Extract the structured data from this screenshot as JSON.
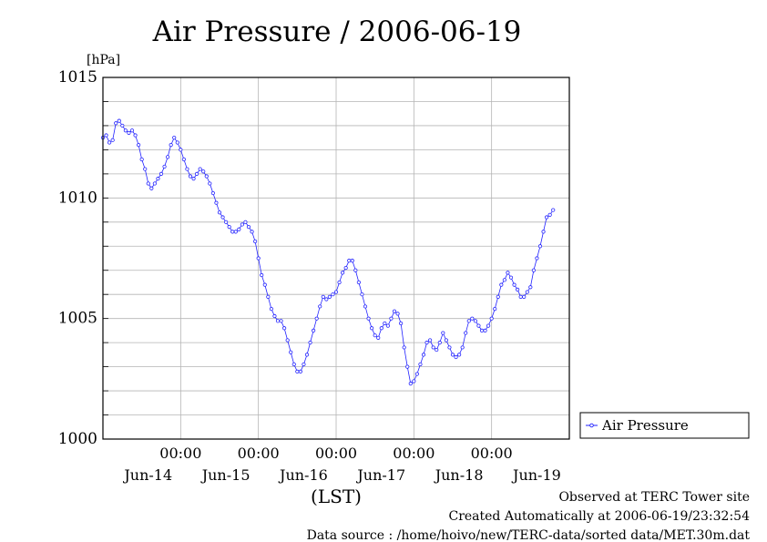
{
  "chart_data": {
    "type": "line",
    "title": "Air Pressure / 2006-06-19",
    "ylabel": "[hPa]",
    "xlabel": "(LST)",
    "ylim": [
      1000,
      1015
    ],
    "yticks": [
      "1000",
      "1005",
      "1010",
      "1015"
    ],
    "xlim_hours": [
      0,
      144
    ],
    "x_units": "hours since 2006-06-13 21:00 LST",
    "xticks": [
      {
        "x": 24,
        "time": "00:00",
        "date": "Jun-14"
      },
      {
        "x": 48,
        "time": "00:00",
        "date": "Jun-15"
      },
      {
        "x": 72,
        "time": "00:00",
        "date": "Jun-16"
      },
      {
        "x": 96,
        "time": "00:00",
        "date": "Jun-17"
      },
      {
        "x": 120,
        "time": "00:00",
        "date": "Jun-18"
      }
    ],
    "xdate_extra": {
      "x": 134,
      "date": "Jun-19"
    },
    "grid": true,
    "legend_position": "right",
    "series": [
      {
        "name": "Air Pressure",
        "color": "#2222ff",
        "points": [
          [
            0,
            1012.5
          ],
          [
            1,
            1012.6
          ],
          [
            2,
            1012.3
          ],
          [
            3,
            1012.4
          ],
          [
            4,
            1013.1
          ],
          [
            5,
            1013.2
          ],
          [
            6,
            1013.0
          ],
          [
            7,
            1012.8
          ],
          [
            8,
            1012.7
          ],
          [
            9,
            1012.8
          ],
          [
            10,
            1012.6
          ],
          [
            11,
            1012.2
          ],
          [
            12,
            1011.6
          ],
          [
            13,
            1011.2
          ],
          [
            14,
            1010.6
          ],
          [
            15,
            1010.4
          ],
          [
            16,
            1010.6
          ],
          [
            17,
            1010.8
          ],
          [
            18,
            1011.0
          ],
          [
            19,
            1011.3
          ],
          [
            20,
            1011.7
          ],
          [
            21,
            1012.2
          ],
          [
            22,
            1012.5
          ],
          [
            23,
            1012.3
          ],
          [
            24,
            1012.0
          ],
          [
            25,
            1011.6
          ],
          [
            26,
            1011.2
          ],
          [
            27,
            1010.9
          ],
          [
            28,
            1010.8
          ],
          [
            29,
            1011.0
          ],
          [
            30,
            1011.2
          ],
          [
            31,
            1011.1
          ],
          [
            32,
            1010.9
          ],
          [
            33,
            1010.6
          ],
          [
            34,
            1010.2
          ],
          [
            35,
            1009.8
          ],
          [
            36,
            1009.4
          ],
          [
            37,
            1009.2
          ],
          [
            38,
            1009.0
          ],
          [
            39,
            1008.8
          ],
          [
            40,
            1008.6
          ],
          [
            41,
            1008.6
          ],
          [
            42,
            1008.7
          ],
          [
            43,
            1008.9
          ],
          [
            44,
            1009.0
          ],
          [
            45,
            1008.8
          ],
          [
            46,
            1008.6
          ],
          [
            47,
            1008.2
          ],
          [
            48,
            1007.5
          ],
          [
            49,
            1006.8
          ],
          [
            50,
            1006.4
          ],
          [
            51,
            1005.9
          ],
          [
            52,
            1005.4
          ],
          [
            53,
            1005.1
          ],
          [
            54,
            1004.9
          ],
          [
            55,
            1004.9
          ],
          [
            56,
            1004.6
          ],
          [
            57,
            1004.1
          ],
          [
            58,
            1003.6
          ],
          [
            59,
            1003.1
          ],
          [
            60,
            1002.8
          ],
          [
            61,
            1002.8
          ],
          [
            62,
            1003.1
          ],
          [
            63,
            1003.5
          ],
          [
            64,
            1004.0
          ],
          [
            65,
            1004.5
          ],
          [
            66,
            1005.0
          ],
          [
            67,
            1005.5
          ],
          [
            68,
            1005.9
          ],
          [
            69,
            1005.8
          ],
          [
            70,
            1005.9
          ],
          [
            71,
            1006.0
          ],
          [
            72,
            1006.1
          ],
          [
            73,
            1006.5
          ],
          [
            74,
            1006.9
          ],
          [
            75,
            1007.1
          ],
          [
            76,
            1007.4
          ],
          [
            77,
            1007.4
          ],
          [
            78,
            1007.0
          ],
          [
            79,
            1006.5
          ],
          [
            80,
            1006.0
          ],
          [
            81,
            1005.5
          ],
          [
            82,
            1005.0
          ],
          [
            83,
            1004.6
          ],
          [
            84,
            1004.3
          ],
          [
            85,
            1004.2
          ],
          [
            86,
            1004.6
          ],
          [
            87,
            1004.8
          ],
          [
            88,
            1004.7
          ],
          [
            89,
            1005.0
          ],
          [
            90,
            1005.3
          ],
          [
            91,
            1005.2
          ],
          [
            92,
            1004.8
          ],
          [
            93,
            1003.8
          ],
          [
            94,
            1003.0
          ],
          [
            95,
            1002.3
          ],
          [
            96,
            1002.4
          ],
          [
            97,
            1002.7
          ],
          [
            98,
            1003.1
          ],
          [
            99,
            1003.5
          ],
          [
            100,
            1004.0
          ],
          [
            101,
            1004.1
          ],
          [
            102,
            1003.8
          ],
          [
            103,
            1003.7
          ],
          [
            104,
            1004.0
          ],
          [
            105,
            1004.4
          ],
          [
            106,
            1004.1
          ],
          [
            107,
            1003.8
          ],
          [
            108,
            1003.5
          ],
          [
            109,
            1003.4
          ],
          [
            110,
            1003.5
          ],
          [
            111,
            1003.8
          ],
          [
            112,
            1004.4
          ],
          [
            113,
            1004.9
          ],
          [
            114,
            1005.0
          ],
          [
            115,
            1004.9
          ],
          [
            116,
            1004.7
          ],
          [
            117,
            1004.5
          ],
          [
            118,
            1004.5
          ],
          [
            119,
            1004.7
          ],
          [
            120,
            1005.0
          ],
          [
            121,
            1005.4
          ],
          [
            122,
            1005.9
          ],
          [
            123,
            1006.4
          ],
          [
            124,
            1006.6
          ],
          [
            125,
            1006.9
          ],
          [
            126,
            1006.7
          ],
          [
            127,
            1006.4
          ],
          [
            128,
            1006.2
          ],
          [
            129,
            1005.9
          ],
          [
            130,
            1005.9
          ],
          [
            131,
            1006.1
          ],
          [
            132,
            1006.3
          ],
          [
            133,
            1007.0
          ],
          [
            134,
            1007.5
          ],
          [
            135,
            1008.0
          ],
          [
            136,
            1008.6
          ],
          [
            137,
            1009.2
          ],
          [
            138,
            1009.3
          ],
          [
            139,
            1009.5
          ]
        ]
      }
    ]
  },
  "legend": {
    "label": "Air Pressure"
  },
  "footer": {
    "line1": "Observed at TERC Tower site",
    "line2": "Created Automatically at 2006-06-19/23:32:54",
    "line3": "Data source : /home/hoivo/new/TERC-data/sorted  data/MET.30m.dat"
  }
}
